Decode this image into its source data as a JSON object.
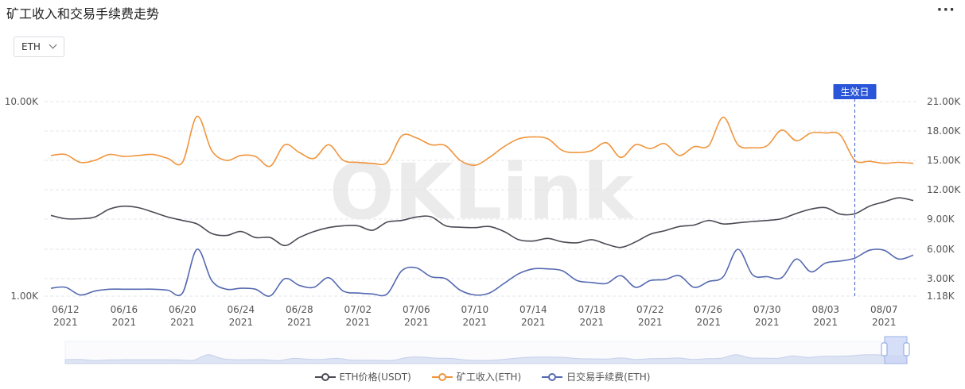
{
  "page": {
    "title": "矿工收入和交易手续费走势",
    "more_icon": "ellipsis-icon",
    "currency_select": {
      "value": "ETH",
      "icon": "chevron-down-icon"
    },
    "watermark": "OKLink"
  },
  "chart_data": {
    "type": "line",
    "title": "矿工收入和交易手续费走势",
    "x_ticks": [
      {
        "date": "06/12",
        "year": "2021"
      },
      {
        "date": "06/16",
        "year": "2021"
      },
      {
        "date": "06/20",
        "year": "2021"
      },
      {
        "date": "06/24",
        "year": "2021"
      },
      {
        "date": "06/28",
        "year": "2021"
      },
      {
        "date": "07/02",
        "year": "2021"
      },
      {
        "date": "07/06",
        "year": "2021"
      },
      {
        "date": "07/10",
        "year": "2021"
      },
      {
        "date": "07/14",
        "year": "2021"
      },
      {
        "date": "07/18",
        "year": "2021"
      },
      {
        "date": "07/22",
        "year": "2021"
      },
      {
        "date": "07/26",
        "year": "2021"
      },
      {
        "date": "07/30",
        "year": "2021"
      },
      {
        "date": "08/03",
        "year": "2021"
      },
      {
        "date": "08/07",
        "year": "2021"
      }
    ],
    "left_axis": {
      "scale": "log",
      "ticks": [
        "10.00K",
        "1.00K"
      ],
      "range": [
        1000,
        10000
      ]
    },
    "right_axis": {
      "ticks": [
        "21.00K",
        "18.00K",
        "15.00K",
        "12.00K",
        "9.00K",
        "6.00K",
        "3.00K",
        "1.18K"
      ],
      "range": [
        1180,
        21000
      ]
    },
    "annotation": {
      "label": "生效日",
      "date": "2021-08-05"
    },
    "grid": "horizontal dashed",
    "legend_position": "bottom",
    "x": [
      "06/11",
      "06/12",
      "06/13",
      "06/14",
      "06/15",
      "06/16",
      "06/17",
      "06/18",
      "06/19",
      "06/20",
      "06/21",
      "06/22",
      "06/23",
      "06/24",
      "06/25",
      "06/26",
      "06/27",
      "06/28",
      "06/29",
      "06/30",
      "07/01",
      "07/02",
      "07/03",
      "07/04",
      "07/05",
      "07/06",
      "07/07",
      "07/08",
      "07/09",
      "07/10",
      "07/11",
      "07/12",
      "07/13",
      "07/14",
      "07/15",
      "07/16",
      "07/17",
      "07/18",
      "07/19",
      "07/20",
      "07/21",
      "07/22",
      "07/23",
      "07/24",
      "07/25",
      "07/26",
      "07/27",
      "07/28",
      "07/29",
      "07/30",
      "07/31",
      "08/01",
      "08/02",
      "08/03",
      "08/04",
      "08/05",
      "08/06",
      "08/07",
      "08/08",
      "08/09"
    ],
    "series": [
      {
        "name": "ETH价格(USDT)",
        "axis": "left",
        "color": "#4a4a55",
        "values": [
          2600,
          2500,
          2500,
          2550,
          2800,
          2900,
          2850,
          2700,
          2550,
          2450,
          2350,
          2100,
          2050,
          2150,
          2000,
          2000,
          1820,
          2000,
          2150,
          2250,
          2300,
          2300,
          2180,
          2400,
          2450,
          2550,
          2560,
          2300,
          2260,
          2250,
          2280,
          2150,
          1950,
          1920,
          1980,
          1900,
          1880,
          1950,
          1850,
          1780,
          1900,
          2080,
          2170,
          2280,
          2320,
          2450,
          2350,
          2380,
          2420,
          2450,
          2500,
          2660,
          2800,
          2850,
          2640,
          2650,
          2900,
          3050,
          3200,
          3100
        ]
      },
      {
        "name": "矿工收入(ETH)",
        "axis": "right",
        "color": "#f0953d",
        "values": [
          15500,
          15600,
          14800,
          15000,
          15600,
          15400,
          15500,
          15600,
          15200,
          14800,
          19500,
          16000,
          15000,
          15500,
          15400,
          14400,
          16600,
          15800,
          15200,
          16600,
          15000,
          14800,
          14700,
          14800,
          17500,
          17300,
          16600,
          16500,
          15000,
          14500,
          15300,
          16400,
          17200,
          17400,
          17200,
          16000,
          15800,
          16000,
          16800,
          15300,
          16600,
          16200,
          16700,
          15500,
          16400,
          16500,
          19400,
          16600,
          16300,
          16500,
          18100,
          17000,
          17800,
          17800,
          17600,
          15000,
          14900,
          14700,
          14800,
          14700
        ]
      },
      {
        "name": "日交易手续费(ETH)",
        "axis": "right",
        "color": "#5469b0",
        "values": [
          2000,
          2100,
          1300,
          1700,
          1900,
          1900,
          1900,
          1900,
          1800,
          1500,
          6000,
          2800,
          1900,
          2000,
          1900,
          1200,
          3000,
          2300,
          2100,
          3100,
          1700,
          1500,
          1400,
          1400,
          3800,
          4100,
          3200,
          3000,
          1800,
          1300,
          1500,
          2500,
          3500,
          4000,
          4000,
          3800,
          2800,
          2600,
          2500,
          3300,
          2100,
          2800,
          2900,
          3300,
          2100,
          2700,
          3200,
          6000,
          3400,
          3200,
          3100,
          5000,
          3700,
          4600,
          4800,
          5100,
          5900,
          5900,
          5000,
          5400
        ]
      }
    ],
    "legend": [
      "ETH价格(USDT)",
      "矿工收入(ETH)",
      "日交易手续费(ETH)"
    ]
  }
}
